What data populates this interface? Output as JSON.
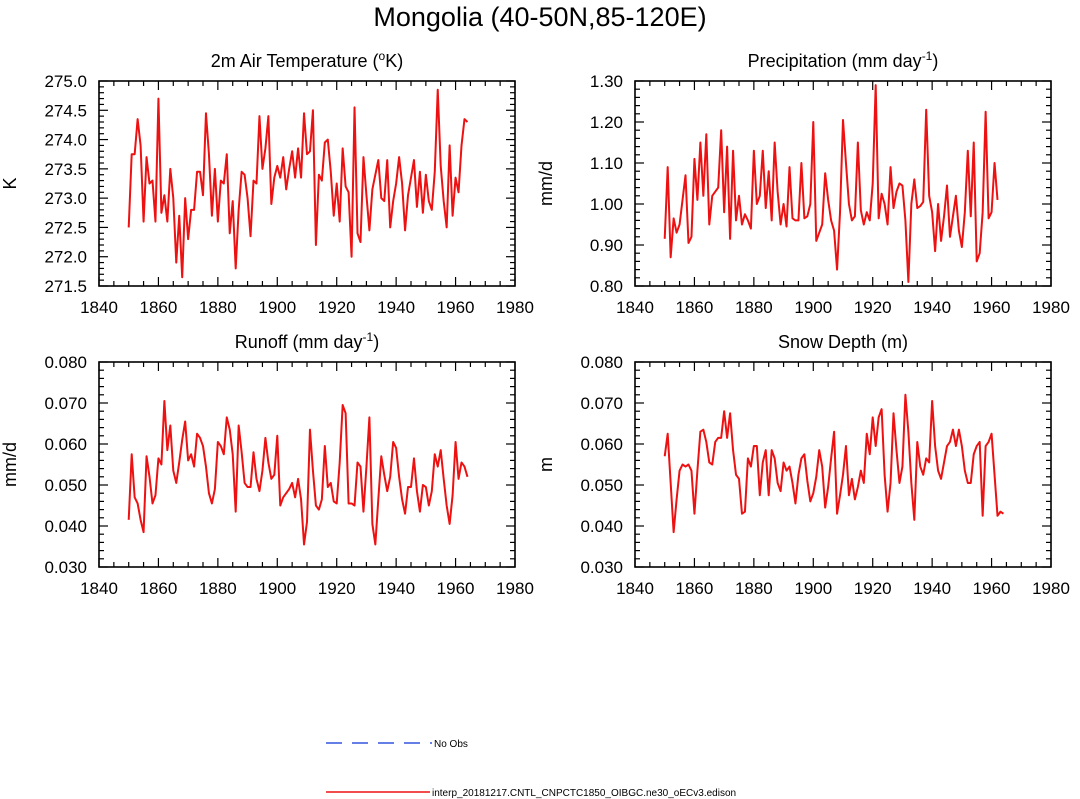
{
  "figure": {
    "title": "Mongolia (40-50N,85-120E)"
  },
  "legend": {
    "obs_label": "No Obs",
    "obs_color": "#3355dd",
    "model_label": "interp_20181217.CNTL_CNPCTC1850_OIBGC.ne30_oECv3.edison",
    "model_color": "#ee1111"
  },
  "chart_data": [
    {
      "type": "line",
      "title": "2m Air Temperature (°K)",
      "title_parts": [
        "2m Air Temperature (",
        "o",
        "K)"
      ],
      "ylabel": "K",
      "xlim": [
        1840,
        1980
      ],
      "xticks": [
        1840,
        1860,
        1880,
        1900,
        1920,
        1940,
        1960,
        1980
      ],
      "ylim": [
        271.5,
        275.0
      ],
      "yticks": [
        271.5,
        272.0,
        272.5,
        273.0,
        273.5,
        274.0,
        274.5,
        275.0
      ],
      "ytick_decimals": 1,
      "x_start": 1850,
      "series": [
        {
          "name": "interp_20181217.CNTL_CNPCTC1850_OIBGC.ne30_oECv3.edison",
          "values": [
            272.5,
            273.75,
            273.75,
            274.35,
            273.9,
            272.6,
            273.7,
            273.25,
            273.3,
            272.6,
            274.7,
            272.75,
            273.05,
            272.6,
            273.5,
            273.0,
            271.9,
            272.7,
            271.65,
            273.0,
            272.3,
            272.8,
            272.8,
            273.45,
            273.45,
            273.05,
            274.45,
            273.75,
            272.7,
            273.5,
            272.6,
            273.3,
            273.25,
            273.75,
            272.4,
            272.95,
            271.8,
            272.8,
            273.45,
            273.4,
            273.0,
            272.35,
            273.3,
            273.25,
            274.4,
            273.5,
            273.85,
            274.4,
            272.9,
            273.35,
            273.55,
            273.35,
            273.7,
            273.15,
            273.5,
            273.8,
            273.35,
            273.85,
            273.35,
            274.45,
            273.75,
            273.8,
            274.5,
            272.2,
            273.4,
            273.3,
            273.95,
            274.0,
            273.45,
            272.7,
            273.25,
            272.6,
            273.85,
            273.2,
            273.1,
            272.0,
            274.55,
            272.4,
            272.25,
            273.7,
            273.05,
            272.45,
            273.15,
            273.4,
            273.65,
            273.0,
            272.95,
            273.65,
            272.5,
            272.95,
            273.25,
            273.7,
            273.25,
            272.45,
            273.05,
            273.35,
            273.65,
            272.85,
            273.45,
            272.75,
            273.4,
            272.95,
            272.8,
            273.45,
            274.85,
            273.55,
            272.95,
            272.5,
            273.9,
            272.7,
            273.35,
            273.1,
            273.9,
            274.35,
            274.3
          ]
        }
      ]
    },
    {
      "type": "line",
      "title": "Precipitation (mm day-1)",
      "title_parts": [
        "Precipitation (mm day",
        "-1",
        ")"
      ],
      "ylabel": "mm/d",
      "xlim": [
        1840,
        1980
      ],
      "xticks": [
        1840,
        1860,
        1880,
        1900,
        1920,
        1940,
        1960,
        1980
      ],
      "ylim": [
        0.8,
        1.3
      ],
      "yticks": [
        0.8,
        0.9,
        1.0,
        1.1,
        1.2,
        1.3
      ],
      "ytick_decimals": 2,
      "x_start": 1850,
      "series": [
        {
          "name": "interp_20181217.CNTL_CNPCTC1850_OIBGC.ne30_oECv3.edison",
          "values": [
            0.915,
            1.09,
            0.87,
            0.965,
            0.93,
            0.95,
            1.01,
            1.07,
            0.905,
            0.92,
            1.11,
            1.01,
            1.15,
            1.02,
            1.17,
            0.95,
            1.02,
            1.03,
            1.04,
            1.18,
            0.98,
            1.14,
            0.915,
            1.13,
            0.96,
            1.02,
            0.95,
            0.975,
            0.96,
            0.94,
            1.13,
            1.0,
            1.02,
            1.13,
            0.99,
            1.08,
            0.96,
            1.15,
            1.03,
            0.95,
            1.0,
            0.945,
            1.09,
            0.965,
            0.96,
            0.96,
            1.1,
            0.965,
            0.97,
            1.0,
            1.2,
            0.91,
            0.93,
            0.95,
            1.075,
            1.01,
            0.96,
            0.935,
            0.84,
            0.98,
            1.205,
            1.1,
            1.0,
            0.96,
            0.97,
            1.15,
            0.985,
            0.95,
            0.98,
            0.96,
            1.05,
            1.29,
            0.965,
            1.025,
            1.0,
            0.95,
            1.09,
            0.99,
            1.03,
            1.05,
            1.045,
            0.96,
            0.81,
            1.0,
            1.06,
            0.99,
            0.995,
            1.005,
            1.23,
            1.02,
            0.98,
            0.885,
            1.0,
            0.91,
            0.97,
            1.045,
            0.92,
            0.97,
            1.02,
            0.935,
            0.895,
            0.98,
            1.13,
            0.97,
            1.15,
            0.86,
            0.88,
            0.98,
            1.225,
            0.965,
            0.98,
            1.1,
            1.01
          ]
        }
      ]
    },
    {
      "type": "line",
      "title": "Runoff (mm day-1)",
      "title_parts": [
        "Runoff (mm day",
        "-1",
        ")"
      ],
      "ylabel": "mm/d",
      "xlim": [
        1840,
        1980
      ],
      "xticks": [
        1840,
        1860,
        1880,
        1900,
        1920,
        1940,
        1960,
        1980
      ],
      "ylim": [
        0.03,
        0.08
      ],
      "yticks": [
        0.03,
        0.04,
        0.05,
        0.06,
        0.07,
        0.08
      ],
      "ytick_decimals": 3,
      "x_start": 1850,
      "series": [
        {
          "name": "interp_20181217.CNTL_CNPCTC1850_OIBGC.ne30_oECv3.edison",
          "values": [
            0.0415,
            0.0575,
            0.047,
            0.0455,
            0.0415,
            0.0385,
            0.057,
            0.052,
            0.0455,
            0.0475,
            0.0565,
            0.055,
            0.0705,
            0.0585,
            0.0645,
            0.0535,
            0.0505,
            0.0555,
            0.061,
            0.0655,
            0.056,
            0.0575,
            0.0545,
            0.0625,
            0.0615,
            0.0595,
            0.0545,
            0.048,
            0.0455,
            0.049,
            0.0605,
            0.0595,
            0.0575,
            0.0665,
            0.0635,
            0.0575,
            0.0435,
            0.0645,
            0.058,
            0.0505,
            0.0495,
            0.0495,
            0.058,
            0.0515,
            0.0485,
            0.0535,
            0.0615,
            0.0555,
            0.0515,
            0.0525,
            0.062,
            0.045,
            0.047,
            0.048,
            0.049,
            0.0505,
            0.047,
            0.0515,
            0.0465,
            0.0355,
            0.041,
            0.0635,
            0.0535,
            0.045,
            0.044,
            0.0465,
            0.0595,
            0.0495,
            0.0505,
            0.046,
            0.0455,
            0.0555,
            0.0695,
            0.0675,
            0.0455,
            0.0455,
            0.045,
            0.0555,
            0.0545,
            0.0435,
            0.0545,
            0.0665,
            0.0405,
            0.0355,
            0.0465,
            0.057,
            0.0525,
            0.0485,
            0.052,
            0.0605,
            0.059,
            0.052,
            0.0465,
            0.043,
            0.0495,
            0.0495,
            0.0565,
            0.0485,
            0.0435,
            0.05,
            0.0495,
            0.045,
            0.0485,
            0.0575,
            0.0545,
            0.0585,
            0.0515,
            0.045,
            0.0405,
            0.0475,
            0.0605,
            0.0515,
            0.0555,
            0.0545,
            0.052
          ]
        }
      ]
    },
    {
      "type": "line",
      "title": "Snow Depth (m)",
      "title_parts": [
        "Snow Depth (m)",
        "",
        ""
      ],
      "ylabel": "m",
      "xlim": [
        1840,
        1980
      ],
      "xticks": [
        1840,
        1860,
        1880,
        1900,
        1920,
        1940,
        1960,
        1980
      ],
      "ylim": [
        0.03,
        0.08
      ],
      "yticks": [
        0.03,
        0.04,
        0.05,
        0.06,
        0.07,
        0.08
      ],
      "ytick_decimals": 3,
      "x_start": 1850,
      "series": [
        {
          "name": "interp_20181217.CNTL_CNPCTC1850_OIBGC.ne30_oECv3.edison",
          "values": [
            0.057,
            0.0625,
            0.0505,
            0.0385,
            0.0465,
            0.0535,
            0.055,
            0.0545,
            0.055,
            0.0535,
            0.043,
            0.0535,
            0.063,
            0.0635,
            0.0605,
            0.0555,
            0.055,
            0.0605,
            0.0615,
            0.0615,
            0.068,
            0.0615,
            0.0675,
            0.0585,
            0.0525,
            0.0515,
            0.043,
            0.0435,
            0.0565,
            0.0545,
            0.0595,
            0.0595,
            0.0475,
            0.0555,
            0.0585,
            0.0475,
            0.0585,
            0.0565,
            0.0505,
            0.0485,
            0.0555,
            0.0535,
            0.0545,
            0.0505,
            0.0455,
            0.0525,
            0.0565,
            0.0575,
            0.051,
            0.046,
            0.048,
            0.052,
            0.0585,
            0.0545,
            0.0445,
            0.0495,
            0.0565,
            0.063,
            0.043,
            0.0475,
            0.0525,
            0.0595,
            0.0475,
            0.0515,
            0.0465,
            0.0495,
            0.0535,
            0.0505,
            0.0625,
            0.0575,
            0.0665,
            0.0595,
            0.0665,
            0.0685,
            0.0525,
            0.0435,
            0.0505,
            0.0675,
            0.0585,
            0.0505,
            0.0545,
            0.072,
            0.063,
            0.0505,
            0.0415,
            0.0605,
            0.0545,
            0.0525,
            0.0565,
            0.0555,
            0.0705,
            0.0595,
            0.0535,
            0.0515,
            0.0555,
            0.0595,
            0.0605,
            0.0635,
            0.0595,
            0.0635,
            0.0595,
            0.0535,
            0.0505,
            0.0505,
            0.0575,
            0.0595,
            0.0605,
            0.0425,
            0.0595,
            0.0605,
            0.0625,
            0.0525,
            0.0425,
            0.0435,
            0.043
          ]
        }
      ]
    }
  ]
}
